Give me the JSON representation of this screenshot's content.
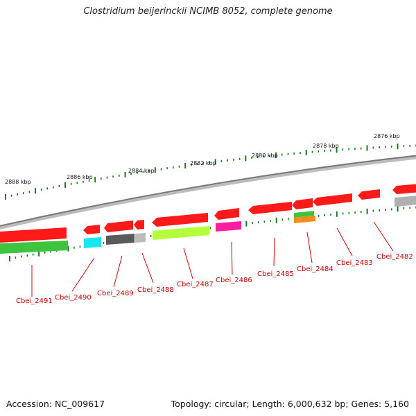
{
  "title": "Clostridium beijerinckii NCIMB 8052, complete genome",
  "footer": {
    "accession": "Accession: NC_009617",
    "summary": "Topology: circular; Length: 6,000,632 bp; Genes: 5,160"
  },
  "scale_labels": [
    "2888 kbp",
    "2886 kbp",
    "2884 kbp",
    "2882 kbp",
    "2880 kbp",
    "2878 kbp",
    "2876 kbp"
  ],
  "genes": [
    {
      "name": "Cbei_2491",
      "color": "#ff0000",
      "cog_color": "#33cc33"
    },
    {
      "name": "Cbei_2490",
      "color": "#ff0000",
      "cog_color": "#00e5ee"
    },
    {
      "name": "Cbei_2489",
      "color": "#ff0000",
      "cog_color": "#555555"
    },
    {
      "name": "Cbei_2488",
      "color": "#ff0000",
      "cog_color": "#bbbbbb"
    },
    {
      "name": "Cbei_2487",
      "color": "#ff0000",
      "cog_color": "#adff2f"
    },
    {
      "name": "Cbei_2486",
      "color": "#ff0000",
      "cog_color": "#ff1493"
    },
    {
      "name": "Cbei_2485",
      "color": "#ff0000",
      "cog_color": ""
    },
    {
      "name": "Cbei_2484",
      "color": "#ff0000",
      "cog_color": "#33cc33 / #ff8c00"
    },
    {
      "name": "Cbei_2483",
      "color": "#ff0000",
      "cog_color": ""
    },
    {
      "name": "Cbei_2482",
      "color": "#ff0000",
      "cog_color": "#aaaaaa"
    }
  ],
  "colors": {
    "gene_forward": "#ff0000",
    "backbone": "#888888",
    "tick": "#1a7a1a",
    "label": "#cc0000"
  }
}
